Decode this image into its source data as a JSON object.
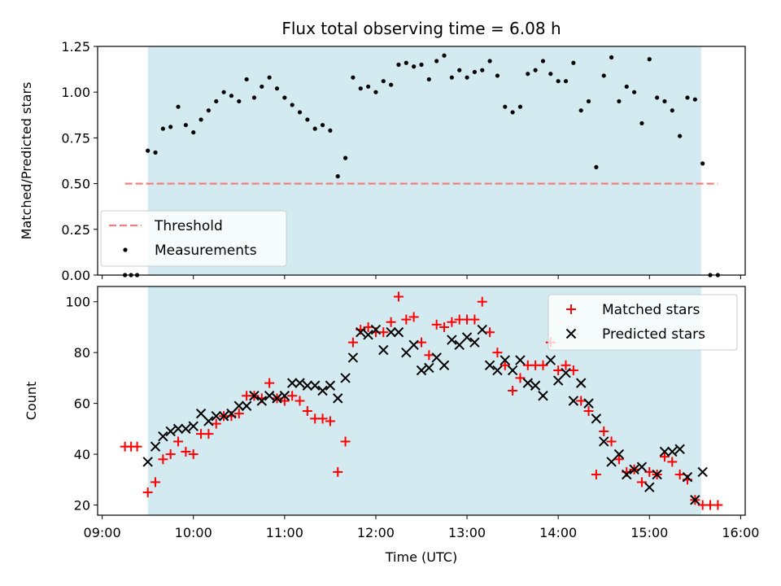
{
  "chart_data": [
    {
      "type": "scatter",
      "title": "Flux total observing time = 6.08 h",
      "xlabel": "",
      "ylabel": "Matched/Predicted stars",
      "ylim": [
        0,
        1.25
      ],
      "yticks": [
        "0.00",
        "0.25",
        "0.50",
        "0.75",
        "1.00",
        "1.25"
      ],
      "shaded_interval": [
        "09:30",
        "15:34"
      ],
      "shade_color": "#d3eaf0",
      "threshold": {
        "value": 0.5,
        "x_range": [
          "09:15",
          "15:45"
        ],
        "color": "#f08080"
      },
      "legend_position": "bottom-left",
      "legend": {
        "threshold_label": "Threshold",
        "measurements_label": "Measurements"
      },
      "series": [
        {
          "marker": "dot",
          "color": "#000000",
          "points": [
            [
              "09:15",
              0
            ],
            [
              "09:19",
              0
            ],
            [
              "09:23",
              0
            ],
            [
              "09:30",
              0.68
            ],
            [
              "09:35",
              0.67
            ],
            [
              "09:40",
              0.8
            ],
            [
              "09:45",
              0.81
            ],
            [
              "09:50",
              0.92
            ],
            [
              "09:55",
              0.82
            ],
            [
              "10:00",
              0.78
            ],
            [
              "10:05",
              0.85
            ],
            [
              "10:10",
              0.9
            ],
            [
              "10:15",
              0.95
            ],
            [
              "10:20",
              1.0
            ],
            [
              "10:25",
              0.98
            ],
            [
              "10:30",
              0.95
            ],
            [
              "10:35",
              1.07
            ],
            [
              "10:40",
              0.97
            ],
            [
              "10:45",
              1.03
            ],
            [
              "10:50",
              1.08
            ],
            [
              "10:55",
              1.02
            ],
            [
              "11:00",
              0.97
            ],
            [
              "11:05",
              0.93
            ],
            [
              "11:10",
              0.89
            ],
            [
              "11:15",
              0.85
            ],
            [
              "11:20",
              0.8
            ],
            [
              "11:25",
              0.82
            ],
            [
              "11:30",
              0.79
            ],
            [
              "11:35",
              0.54
            ],
            [
              "11:40",
              0.64
            ],
            [
              "11:45",
              1.08
            ],
            [
              "11:50",
              1.02
            ],
            [
              "11:55",
              1.03
            ],
            [
              "12:00",
              1.0
            ],
            [
              "12:05",
              1.06
            ],
            [
              "12:10",
              1.04
            ],
            [
              "12:15",
              1.15
            ],
            [
              "12:20",
              1.16
            ],
            [
              "12:25",
              1.14
            ],
            [
              "12:30",
              1.15
            ],
            [
              "12:35",
              1.07
            ],
            [
              "12:40",
              1.17
            ],
            [
              "12:45",
              1.2
            ],
            [
              "12:50",
              1.08
            ],
            [
              "12:55",
              1.12
            ],
            [
              "13:00",
              1.08
            ],
            [
              "13:05",
              1.11
            ],
            [
              "13:10",
              1.12
            ],
            [
              "13:15",
              1.17
            ],
            [
              "13:20",
              1.09
            ],
            [
              "13:25",
              0.92
            ],
            [
              "13:30",
              0.89
            ],
            [
              "13:35",
              0.92
            ],
            [
              "13:40",
              1.1
            ],
            [
              "13:45",
              1.12
            ],
            [
              "13:50",
              1.17
            ],
            [
              "13:55",
              1.1
            ],
            [
              "14:00",
              1.06
            ],
            [
              "14:05",
              1.06
            ],
            [
              "14:10",
              1.16
            ],
            [
              "14:15",
              0.9
            ],
            [
              "14:20",
              0.95
            ],
            [
              "14:25",
              0.59
            ],
            [
              "14:30",
              1.09
            ],
            [
              "14:35",
              1.19
            ],
            [
              "14:40",
              0.95
            ],
            [
              "14:45",
              1.03
            ],
            [
              "14:50",
              1.0
            ],
            [
              "14:55",
              0.83
            ],
            [
              "15:00",
              1.18
            ],
            [
              "15:05",
              0.97
            ],
            [
              "15:10",
              0.95
            ],
            [
              "15:15",
              0.9
            ],
            [
              "15:20",
              0.76
            ],
            [
              "15:25",
              0.97
            ],
            [
              "15:30",
              0.96
            ],
            [
              "15:35",
              0.61
            ],
            [
              "15:40",
              0
            ],
            [
              "15:45",
              0
            ]
          ]
        }
      ]
    },
    {
      "type": "scatter",
      "title": "",
      "xlabel": "Time (UTC)",
      "ylabel": "Count",
      "ylim": [
        16,
        106
      ],
      "yticks": [
        "20",
        "40",
        "60",
        "80",
        "100"
      ],
      "xticks": [
        "09:00",
        "10:00",
        "11:00",
        "12:00",
        "13:00",
        "14:00",
        "15:00",
        "16:00"
      ],
      "shaded_interval": [
        "09:30",
        "15:34"
      ],
      "shade_color": "#d3eaf0",
      "legend_position": "top-right",
      "legend": {
        "matched_label": "Matched stars",
        "predicted_label": "Predicted stars"
      },
      "series": [
        {
          "marker": "plus",
          "color": "#ff0000",
          "points": [
            [
              "09:15",
              43
            ],
            [
              "09:19",
              43
            ],
            [
              "09:23",
              43
            ],
            [
              "09:30",
              25
            ],
            [
              "09:35",
              29
            ],
            [
              "09:40",
              38
            ],
            [
              "09:45",
              40
            ],
            [
              "09:50",
              45
            ],
            [
              "09:55",
              41
            ],
            [
              "10:00",
              40
            ],
            [
              "10:05",
              48
            ],
            [
              "10:10",
              48
            ],
            [
              "10:15",
              52
            ],
            [
              "10:20",
              55
            ],
            [
              "10:25",
              55
            ],
            [
              "10:30",
              56
            ],
            [
              "10:35",
              63
            ],
            [
              "10:40",
              63
            ],
            [
              "10:45",
              62
            ],
            [
              "10:50",
              68
            ],
            [
              "10:55",
              62
            ],
            [
              "11:00",
              61
            ],
            [
              "11:05",
              63
            ],
            [
              "11:10",
              61
            ],
            [
              "11:15",
              57
            ],
            [
              "11:20",
              54
            ],
            [
              "11:25",
              54
            ],
            [
              "11:30",
              53
            ],
            [
              "11:35",
              33
            ],
            [
              "11:40",
              45
            ],
            [
              "11:45",
              84
            ],
            [
              "11:50",
              89
            ],
            [
              "11:55",
              90
            ],
            [
              "12:00",
              88
            ],
            [
              "12:05",
              88
            ],
            [
              "12:10",
              92
            ],
            [
              "12:15",
              102
            ],
            [
              "12:20",
              93
            ],
            [
              "12:25",
              94
            ],
            [
              "12:30",
              84
            ],
            [
              "12:35",
              79
            ],
            [
              "12:40",
              91
            ],
            [
              "12:45",
              90
            ],
            [
              "12:50",
              92
            ],
            [
              "12:55",
              93
            ],
            [
              "13:00",
              93
            ],
            [
              "13:05",
              93
            ],
            [
              "13:10",
              100
            ],
            [
              "13:15",
              88
            ],
            [
              "13:20",
              80
            ],
            [
              "13:25",
              75
            ],
            [
              "13:30",
              65
            ],
            [
              "13:35",
              70
            ],
            [
              "13:40",
              75
            ],
            [
              "13:45",
              75
            ],
            [
              "13:50",
              75
            ],
            [
              "13:55",
              84
            ],
            [
              "14:00",
              73
            ],
            [
              "14:05",
              75
            ],
            [
              "14:10",
              73
            ],
            [
              "14:15",
              61
            ],
            [
              "14:20",
              57
            ],
            [
              "14:25",
              32
            ],
            [
              "14:30",
              49
            ],
            [
              "14:35",
              45
            ],
            [
              "14:40",
              38
            ],
            [
              "14:45",
              33
            ],
            [
              "14:50",
              34
            ],
            [
              "14:55",
              29
            ],
            [
              "15:00",
              33
            ],
            [
              "15:05",
              32
            ],
            [
              "15:10",
              39
            ],
            [
              "15:15",
              37
            ],
            [
              "15:20",
              32
            ],
            [
              "15:25",
              30
            ],
            [
              "15:30",
              22
            ],
            [
              "15:35",
              20
            ],
            [
              "15:40",
              20
            ],
            [
              "15:45",
              20
            ]
          ]
        },
        {
          "marker": "cross",
          "color": "#000000",
          "points": [
            [
              "09:30",
              37
            ],
            [
              "09:35",
              43
            ],
            [
              "09:40",
              47
            ],
            [
              "09:45",
              49
            ],
            [
              "09:50",
              50
            ],
            [
              "09:55",
              50
            ],
            [
              "10:00",
              51
            ],
            [
              "10:05",
              56
            ],
            [
              "10:10",
              53
            ],
            [
              "10:15",
              55
            ],
            [
              "10:20",
              55
            ],
            [
              "10:25",
              56
            ],
            [
              "10:30",
              59
            ],
            [
              "10:35",
              59
            ],
            [
              "10:40",
              63
            ],
            [
              "10:45",
              61
            ],
            [
              "10:50",
              63
            ],
            [
              "10:55",
              62
            ],
            [
              "11:00",
              63
            ],
            [
              "11:05",
              68
            ],
            [
              "11:10",
              68
            ],
            [
              "11:15",
              67
            ],
            [
              "11:20",
              67
            ],
            [
              "11:25",
              65
            ],
            [
              "11:30",
              67
            ],
            [
              "11:35",
              62
            ],
            [
              "11:40",
              70
            ],
            [
              "11:45",
              78
            ],
            [
              "11:50",
              88
            ],
            [
              "11:55",
              87
            ],
            [
              "12:00",
              89
            ],
            [
              "12:05",
              81
            ],
            [
              "12:10",
              88
            ],
            [
              "12:15",
              88
            ],
            [
              "12:20",
              80
            ],
            [
              "12:25",
              83
            ],
            [
              "12:30",
              73
            ],
            [
              "12:35",
              74
            ],
            [
              "12:40",
              78
            ],
            [
              "12:45",
              75
            ],
            [
              "12:50",
              85
            ],
            [
              "12:55",
              83
            ],
            [
              "13:00",
              86
            ],
            [
              "13:05",
              84
            ],
            [
              "13:10",
              89
            ],
            [
              "13:15",
              75
            ],
            [
              "13:20",
              73
            ],
            [
              "13:25",
              77
            ],
            [
              "13:30",
              73
            ],
            [
              "13:35",
              77
            ],
            [
              "13:40",
              68
            ],
            [
              "13:45",
              67
            ],
            [
              "13:50",
              63
            ],
            [
              "13:55",
              77
            ],
            [
              "14:00",
              69
            ],
            [
              "14:05",
              72
            ],
            [
              "14:10",
              61
            ],
            [
              "14:15",
              68
            ],
            [
              "14:20",
              60
            ],
            [
              "14:25",
              54
            ],
            [
              "14:30",
              45
            ],
            [
              "14:35",
              37
            ],
            [
              "14:40",
              40
            ],
            [
              "14:45",
              32
            ],
            [
              "14:50",
              34
            ],
            [
              "14:55",
              35
            ],
            [
              "15:00",
              27
            ],
            [
              "15:05",
              32
            ],
            [
              "15:10",
              41
            ],
            [
              "15:15",
              41
            ],
            [
              "15:20",
              42
            ],
            [
              "15:25",
              31
            ],
            [
              "15:30",
              22
            ],
            [
              "15:35",
              33
            ]
          ]
        }
      ]
    }
  ]
}
